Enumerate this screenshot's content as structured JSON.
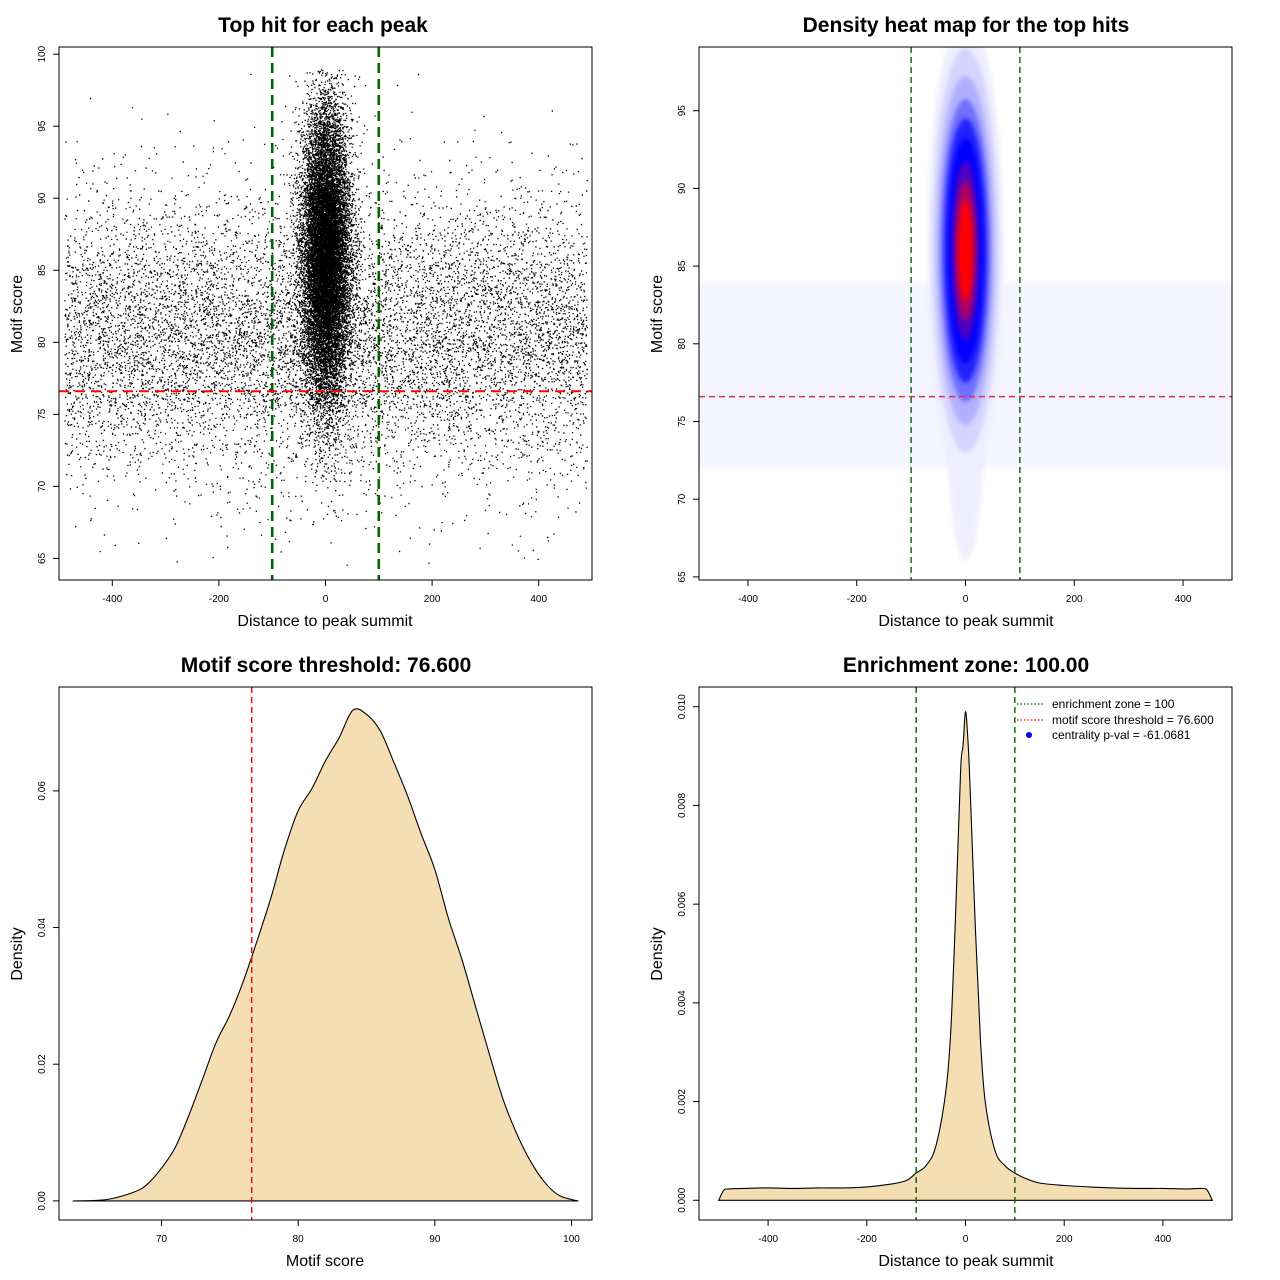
{
  "colors": {
    "points": "#000000",
    "enrichment_line": "#006400",
    "threshold_line": "#ff0000",
    "density_fill": "#f5deb3",
    "heat_low": "#ffffff",
    "heat_mid": "#0000ff",
    "heat_high": "#ff0000",
    "legend_point": "#0000ff"
  },
  "chart_data": [
    {
      "type": "scatter",
      "title": "Top hit for each peak",
      "xlabel": "Distance to peak summit",
      "ylabel": "Motif score",
      "xlim": [
        -500,
        500
      ],
      "ylim": [
        63.5,
        100.5
      ],
      "xticks": [
        "-400",
        "-200",
        "0",
        "200",
        "400"
      ],
      "yticks": [
        "65",
        "70",
        "75",
        "80",
        "85",
        "90",
        "95",
        "100"
      ],
      "vlines": [
        -100,
        100
      ],
      "hline": 76.6,
      "point_cloud": {
        "background": {
          "x_range": [
            -490,
            490
          ],
          "y_center": 80.5,
          "y_sd": 4.8
        },
        "central": {
          "x_center": 0,
          "x_sd": 22,
          "y_center": 86,
          "y_sd": 5
        }
      }
    },
    {
      "type": "heatmap",
      "title": "Density heat map for the top hits",
      "xlabel": "Distance to peak summit",
      "ylabel": "Motif score",
      "xlim": [
        -490,
        490
      ],
      "ylim": [
        64.8,
        99.1
      ],
      "xticks": [
        "-400",
        "-200",
        "0",
        "200",
        "400"
      ],
      "yticks": [
        "65",
        "70",
        "75",
        "80",
        "85",
        "90",
        "95"
      ],
      "vlines": [
        -100,
        100
      ],
      "hline": 76.6,
      "peak": {
        "x": 0,
        "y": 86,
        "x_sd": 22,
        "y_sd": 5
      },
      "color_scale": [
        "white",
        "blue",
        "red"
      ]
    },
    {
      "type": "area",
      "title": "Motif score threshold: 76.600",
      "xlabel": "Motif score",
      "ylabel": "Density",
      "xlim": [
        62.5,
        101.5
      ],
      "ylim": [
        -0.0028,
        0.0752
      ],
      "xticks": [
        "70",
        "80",
        "90",
        "100"
      ],
      "yticks": [
        "0.00",
        "0.02",
        "0.04",
        "0.06"
      ],
      "vline": 76.6,
      "x": [
        63.5,
        66,
        68,
        69,
        70,
        71,
        72,
        73,
        74,
        75,
        76,
        77,
        78,
        79,
        80,
        81,
        82,
        83,
        84,
        85,
        86,
        87,
        88,
        89,
        90,
        91,
        92,
        93,
        94,
        95,
        96,
        97,
        98,
        99,
        100,
        100.5
      ],
      "y": [
        0.0,
        0.0002,
        0.0013,
        0.0025,
        0.0048,
        0.0078,
        0.0125,
        0.0178,
        0.0232,
        0.0272,
        0.0322,
        0.0381,
        0.0443,
        0.0514,
        0.0571,
        0.0603,
        0.0644,
        0.0678,
        0.0718,
        0.0712,
        0.0688,
        0.0642,
        0.0593,
        0.0537,
        0.0485,
        0.0413,
        0.0352,
        0.0283,
        0.0214,
        0.0148,
        0.0098,
        0.0058,
        0.0028,
        0.0009,
        0.0002,
        0.0
      ]
    },
    {
      "type": "area",
      "title": "Enrichment zone: 100.00",
      "xlabel": "Distance to peak summit",
      "ylabel": "Density",
      "xlim": [
        -540,
        540
      ],
      "ylim": [
        -0.0004,
        0.0104
      ],
      "xticks": [
        "-400",
        "-200",
        "0",
        "200",
        "400"
      ],
      "yticks": [
        "0.000",
        "0.002",
        "0.004",
        "0.006",
        "0.008",
        "0.010"
      ],
      "vlines": [
        -100,
        100
      ],
      "x": [
        -500,
        -490,
        -480,
        -450,
        -400,
        -350,
        -300,
        -250,
        -200,
        -150,
        -120,
        -100,
        -80,
        -60,
        -40,
        -30,
        -20,
        -10,
        -5,
        0,
        5,
        10,
        20,
        30,
        40,
        60,
        80,
        100,
        120,
        150,
        200,
        250,
        300,
        350,
        400,
        450,
        480,
        490,
        500
      ],
      "y": [
        0.0,
        0.0002,
        0.00023,
        0.00024,
        0.00025,
        0.00024,
        0.00025,
        0.00025,
        0.00027,
        0.00033,
        0.0004,
        0.00055,
        0.0007,
        0.0011,
        0.0022,
        0.0034,
        0.0058,
        0.0087,
        0.0092,
        0.0099,
        0.0093,
        0.0082,
        0.0055,
        0.0033,
        0.002,
        0.001,
        0.0007,
        0.00055,
        0.00045,
        0.00035,
        0.0003,
        0.00027,
        0.00025,
        0.00024,
        0.00024,
        0.00023,
        0.00024,
        0.0002,
        0.0
      ],
      "legend": [
        {
          "label": "enrichment zone = 100",
          "symbol": "dotted-line",
          "color": "#006400"
        },
        {
          "label": "motif score threshold = 76.600",
          "symbol": "dotted-line",
          "color": "#ff0000"
        },
        {
          "label": "centrality p-val = -61.0681",
          "symbol": "point",
          "color": "#0000ff"
        }
      ]
    }
  ]
}
